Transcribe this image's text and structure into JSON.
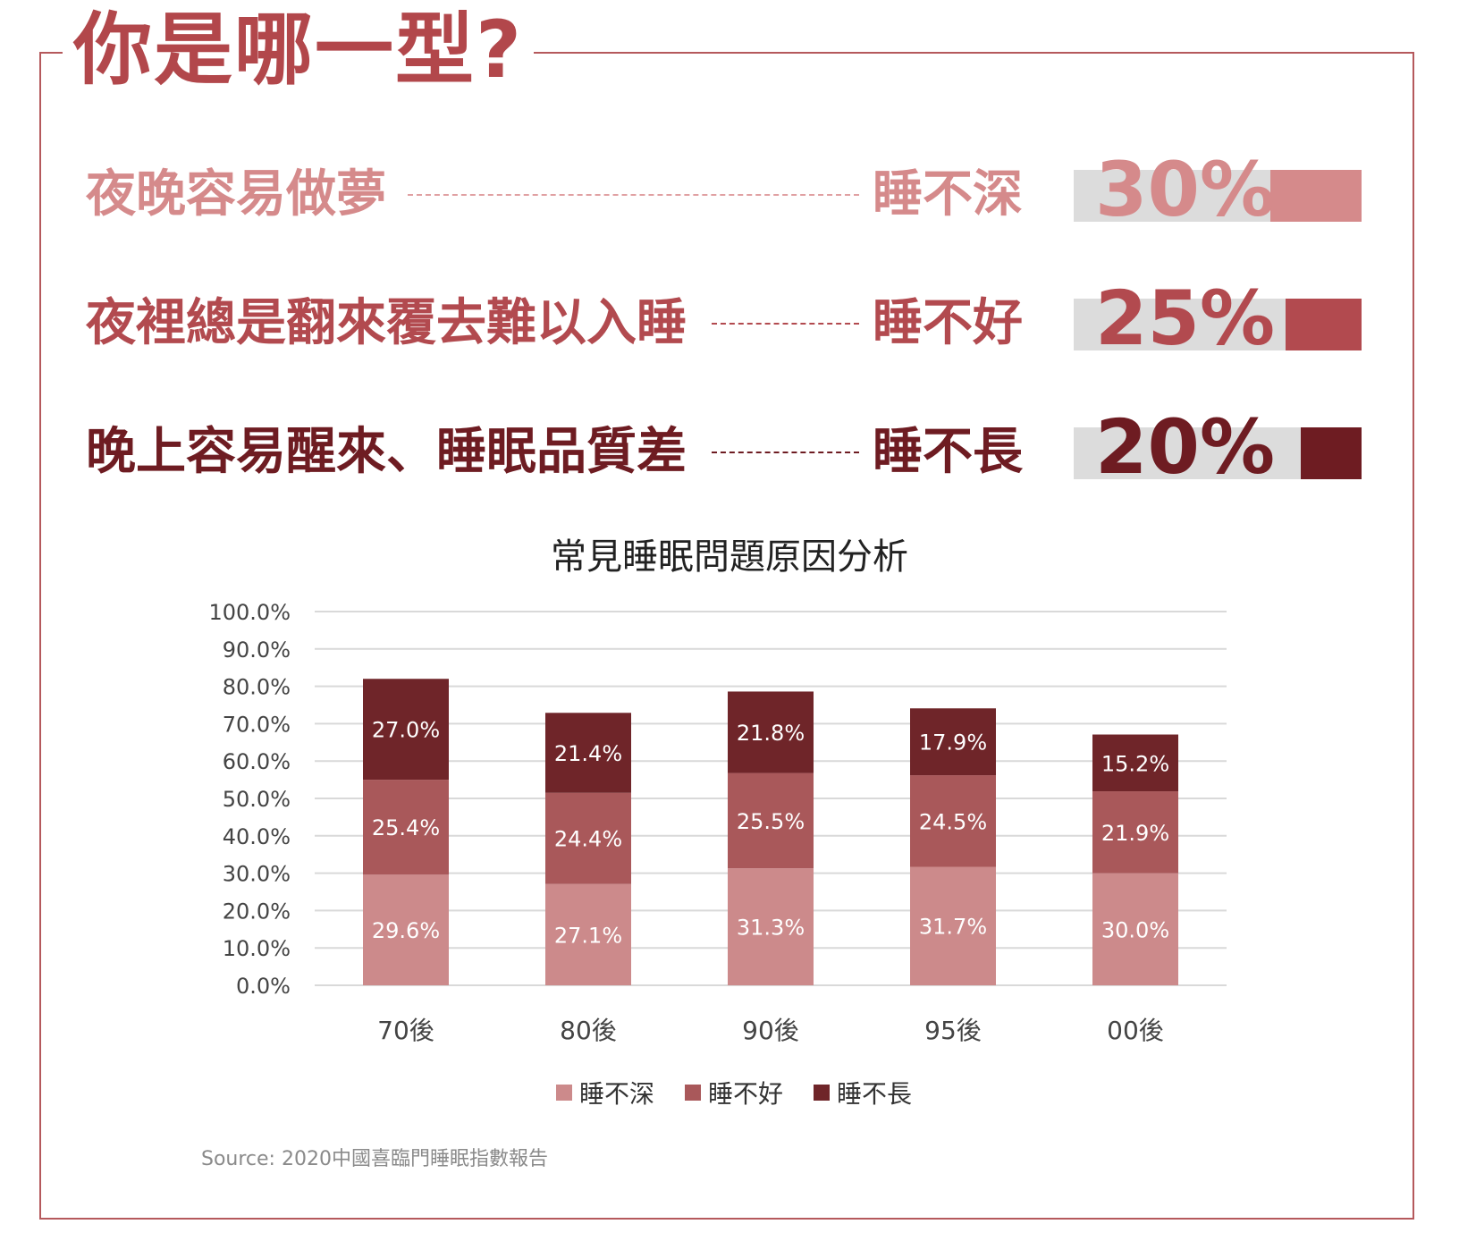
{
  "title": "你是哪一型?",
  "summary": [
    {
      "description": "夜晚容易做夢",
      "type": "睡不深",
      "percent_text": "30%",
      "percent": 30,
      "color": "#d58a8b"
    },
    {
      "description": "夜裡總是翻來覆去難以入睡",
      "type": "睡不好",
      "percent_text": "25%",
      "percent": 25,
      "color": "#b24a4f"
    },
    {
      "description": "晚上容易醒來、睡眠品質差",
      "type": "睡不長",
      "percent_text": "20%",
      "percent": 20,
      "color": "#6e1c22"
    }
  ],
  "chart_data": {
    "type": "bar",
    "stacked": true,
    "title": "常見睡眠問題原因分析",
    "xlabel": "",
    "ylabel": "",
    "ylim": [
      0,
      100
    ],
    "yticks": [
      "0.0%",
      "10.0%",
      "20.0%",
      "30.0%",
      "40.0%",
      "50.0%",
      "60.0%",
      "70.0%",
      "80.0%",
      "90.0%",
      "100.0%"
    ],
    "categories": [
      "70後",
      "80後",
      "90後",
      "95後",
      "00後"
    ],
    "series": [
      {
        "name": "睡不深",
        "color": "#cc8a8b",
        "values": [
          29.6,
          27.1,
          31.3,
          31.7,
          30.0
        ],
        "labels": [
          "29.6%",
          "27.1%",
          "31.3%",
          "31.7%",
          "30.0%"
        ]
      },
      {
        "name": "睡不好",
        "color": "#a9585a",
        "values": [
          25.4,
          24.4,
          25.5,
          24.5,
          21.9
        ],
        "labels": [
          "25.4%",
          "24.4%",
          "25.5%",
          "24.5%",
          "21.9%"
        ]
      },
      {
        "name": "睡不長",
        "color": "#6f2529",
        "values": [
          27.0,
          21.4,
          21.8,
          17.9,
          15.2
        ],
        "labels": [
          "27.0%",
          "21.4%",
          "21.8%",
          "17.9%",
          "15.2%"
        ]
      }
    ],
    "grid": true,
    "legend_position": "bottom"
  },
  "source": "Source: 2020中國喜臨門睡眠指數報告"
}
